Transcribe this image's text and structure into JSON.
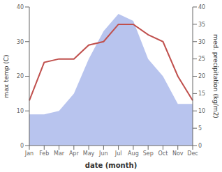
{
  "chart_data": {
    "type": "line",
    "categories": [
      "Jan",
      "Feb",
      "Mar",
      "Apr",
      "May",
      "Jun",
      "Jul",
      "Aug",
      "Sep",
      "Oct",
      "Nov",
      "Dec"
    ],
    "x_label": "date (month)",
    "y_label": "max temp (C)",
    "y2_label": "med. precipitation (kg/m2)",
    "ylim": [
      0,
      40
    ],
    "yticks": [
      0,
      10,
      20,
      30,
      40
    ],
    "y2lim": [
      0,
      40
    ],
    "y2ticks": [
      0,
      5,
      10,
      15,
      20,
      25,
      30,
      35,
      40
    ],
    "grid": false,
    "series": [
      {
        "type": "area",
        "axis": "y2",
        "color": "#b8c4ee",
        "values": [
          9,
          9,
          10,
          15,
          25,
          33,
          38,
          36,
          25,
          20,
          12,
          12
        ]
      },
      {
        "type": "line",
        "color": "#c0504d",
        "values": [
          13,
          24,
          25,
          25,
          29,
          30,
          35,
          35,
          32,
          30,
          20,
          13
        ]
      }
    ]
  }
}
